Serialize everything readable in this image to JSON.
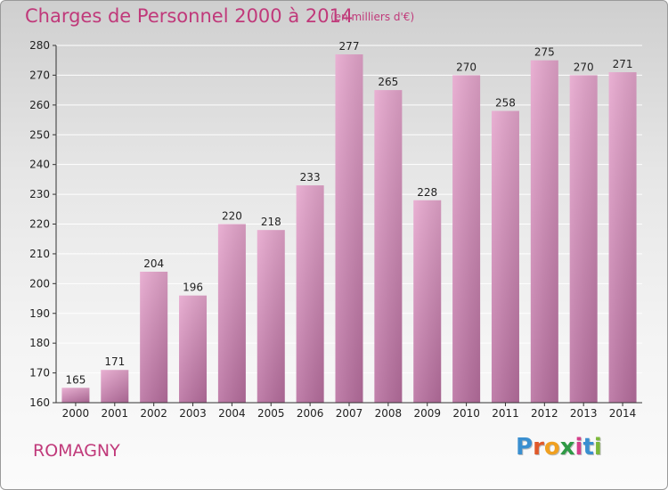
{
  "title": "Charges de Personnel 2000 à 2014",
  "unit": "(en milliers d'€)",
  "commune": "ROMAGNY",
  "logo": {
    "letters": [
      "P",
      "r",
      "o",
      "x",
      "i",
      "t",
      "i"
    ],
    "colors": [
      "#3a8fd0",
      "#e0592a",
      "#f0a020",
      "#2f9a46",
      "#d43f8a",
      "#3a8fd0",
      "#7cb83a"
    ]
  },
  "colors": {
    "bar_top": "#e6a6cd",
    "bar_bottom": "#b86f9f",
    "title": "#c0397a"
  },
  "chart_data": {
    "type": "bar",
    "title": "Charges de Personnel 2000 à 2014",
    "subtitle": "(en milliers d'€)",
    "categories": [
      "2000",
      "2001",
      "2002",
      "2003",
      "2004",
      "2005",
      "2006",
      "2007",
      "2008",
      "2009",
      "2010",
      "2011",
      "2012",
      "2013",
      "2014"
    ],
    "values": [
      165,
      171,
      204,
      196,
      220,
      218,
      233,
      277,
      265,
      228,
      270,
      258,
      275,
      270,
      271
    ],
    "yticks": [
      160,
      170,
      180,
      190,
      200,
      210,
      220,
      230,
      240,
      250,
      260,
      270,
      280
    ],
    "ylim": [
      160,
      280
    ],
    "grid": true
  }
}
